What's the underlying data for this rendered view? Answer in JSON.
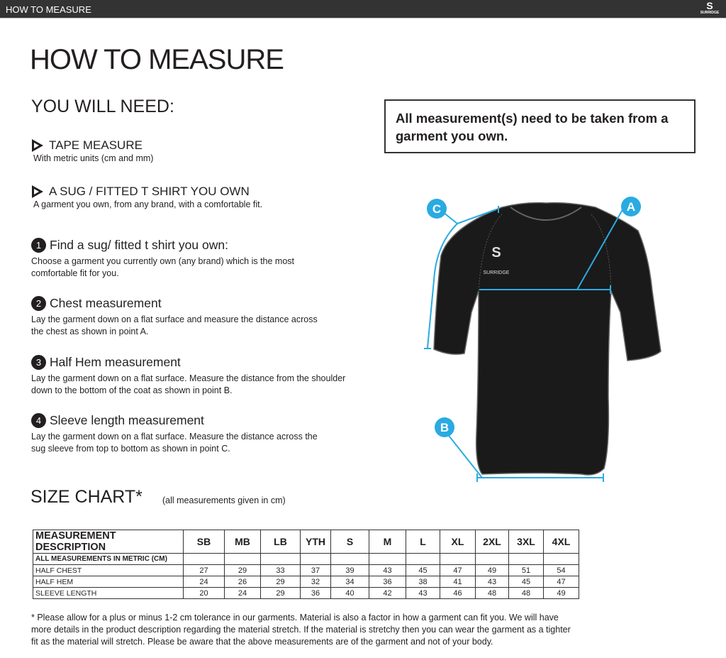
{
  "topbar": {
    "title": "HOW TO MEASURE",
    "logo": "SURRIDGE"
  },
  "page_title": "HOW TO MEASURE",
  "you_will_need": {
    "heading": "YOU WILL NEED:",
    "items": [
      {
        "title": "TAPE MEASURE",
        "desc": "With metric units (cm and mm)"
      },
      {
        "title": "A SUG / FITTED T SHIRT YOU OWN",
        "desc": "A garment you own, from any brand, with a comfortable fit."
      }
    ]
  },
  "steps": [
    {
      "num": "1",
      "title": "Find a sug/ fitted t shirt you own:",
      "desc": [
        "Choose a garment you currently own (any brand) which is the most",
        "comfortable fit for you."
      ]
    },
    {
      "num": "2",
      "title": "Chest measurement",
      "desc": [
        "Lay the garment down on a flat surface and measure the distance across",
        "the chest as shown in point A."
      ]
    },
    {
      "num": "3",
      "title": "Half Hem measurement",
      "desc": [
        "Lay the garment down on a flat surface. Measure the distance from the shoulder",
        "down to the bottom of the coat as shown in point B."
      ]
    },
    {
      "num": "4",
      "title": "Sleeve length measurement",
      "desc": [
        "Lay the garment down on a flat surface. Measure the distance across the",
        "sug sleeve from top to bottom as shown in point C."
      ]
    }
  ],
  "notice": "All measurement(s) need to be taken from a garment you own.",
  "diagram": {
    "labels": [
      "A",
      "B",
      "C"
    ],
    "accent": "#29abe2",
    "garment_color": "#1a1a1a",
    "logo_text": "SURRIDGE"
  },
  "size_chart": {
    "title": "SIZE CHART*",
    "note": "(all measurements given in cm)",
    "headers": [
      "MEASUREMENT DESCRIPTION",
      "SB",
      "MB",
      "LB",
      "YTH",
      "S",
      "M",
      "L",
      "XL",
      "2XL",
      "3XL",
      "4XL"
    ],
    "rows": [
      [
        "ALL MEASUREMENTS IN METRIC (CM)",
        "",
        "",
        "",
        "",
        "",
        "",
        "",
        "",
        "",
        "",
        ""
      ],
      [
        "HALF CHEST",
        "27",
        "29",
        "33",
        "37",
        "39",
        "43",
        "45",
        "47",
        "49",
        "51",
        "54"
      ],
      [
        "HALF HEM",
        "24",
        "26",
        "29",
        "32",
        "34",
        "36",
        "38",
        "41",
        "43",
        "45",
        "47"
      ],
      [
        "SLEEVE LENGTH",
        "20",
        "24",
        "29",
        "36",
        "40",
        "42",
        "43",
        "46",
        "48",
        "48",
        "49"
      ]
    ]
  },
  "footnote": "* Please allow for a plus or minus 1-2 cm tolerance in our garments. Material is also a factor in how a garment can fit you. We will have more details in the product description regarding the material stretch.  If the material is stretchy then you can wear the garment as a tighter fit as the material will stretch.  Please be aware that the above measurements are of the garment and not of your body."
}
